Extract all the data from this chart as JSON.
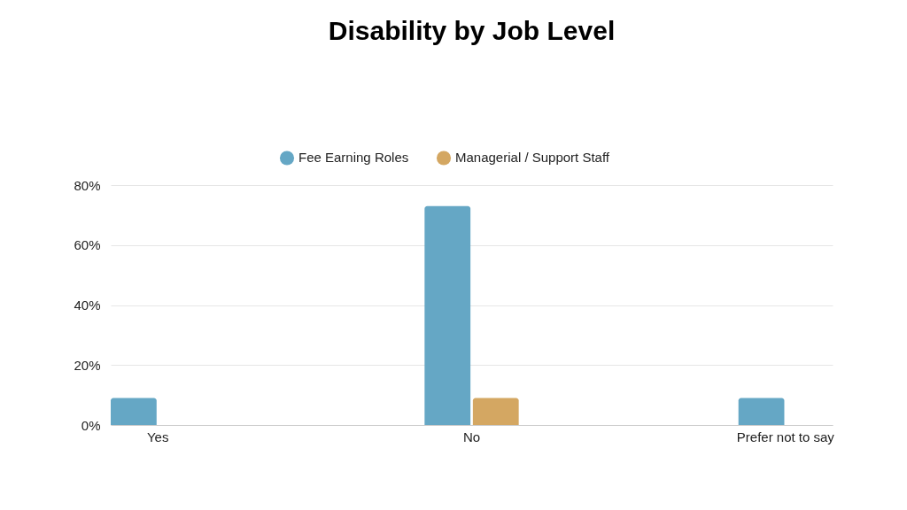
{
  "chart_data": {
    "type": "bar",
    "title": "Disability by Job Level",
    "categories": [
      "Yes",
      "No",
      "Prefer not to say"
    ],
    "series": [
      {
        "name": "Fee Earning Roles",
        "color": "#65a7c5",
        "values": [
          9,
          73,
          9
        ]
      },
      {
        "name": "Managerial / Support Staff",
        "color": "#d4a762",
        "values": [
          0,
          9,
          0
        ]
      }
    ],
    "ylim": [
      0,
      80
    ],
    "yticks": [
      {
        "value": 0,
        "label": "0%"
      },
      {
        "value": 20,
        "label": "20%"
      },
      {
        "value": 40,
        "label": "40%"
      },
      {
        "value": 60,
        "label": "60%"
      },
      {
        "value": 80,
        "label": "80%"
      }
    ],
    "grid": "y",
    "legend": "top"
  }
}
